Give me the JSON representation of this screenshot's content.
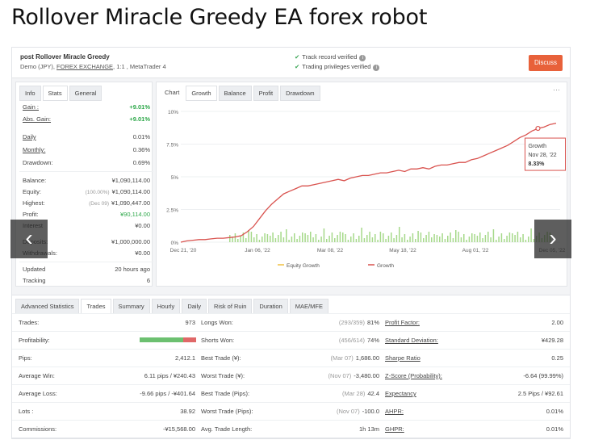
{
  "page_title": "Rollover Miracle Greedy EA forex robot",
  "header": {
    "account_name": "post Rollover Miracle Greedy",
    "account_type": "Demo (JPY),",
    "broker": "FOREX EXCHANGE",
    "leverage_platform": ", 1:1 , MetaTrader 4",
    "verified_1": "Track record verified",
    "verified_2": "Trading privileges verified",
    "discuss_label": "Discuss"
  },
  "left_panel": {
    "tabs": [
      "Info",
      "Stats",
      "General"
    ],
    "rows": [
      {
        "label": "Gain :",
        "value": "+9.01%"
      },
      {
        "label": "Abs. Gain:",
        "value": "+9.01%"
      },
      {
        "label": "Daily",
        "value": "0.01%"
      },
      {
        "label": "Monthly:",
        "value": "0.36%"
      },
      {
        "label": "Drawdown:",
        "value": "0.69%"
      },
      {
        "label": "Balance:",
        "value": "¥1,090,114.00"
      },
      {
        "label": "Equity:",
        "note": "(100.00%)",
        "value": "¥1,090,114.00"
      },
      {
        "label": "Highest:",
        "note": "(Dec 09)",
        "value": "¥1,090,447.00"
      },
      {
        "label": "Profit:",
        "value": "¥90,114.00"
      },
      {
        "label": "Interest",
        "value": "¥0.00"
      },
      {
        "label": "Deposits:",
        "value": "¥1,000,000.00"
      },
      {
        "label": "Withdrawals:",
        "value": "¥0.00"
      },
      {
        "label": "Updated",
        "value": "20 hours ago"
      },
      {
        "label": "Tracking",
        "value": "6"
      }
    ]
  },
  "chart_panel": {
    "tabs": [
      "Chart",
      "Growth",
      "Balance",
      "Profit",
      "Drawdown"
    ],
    "menu_dots": "···",
    "tooltip": {
      "title": "Growth",
      "date": "Nov 28, '22",
      "value": "8.33%"
    },
    "legend": [
      "Equity Growth",
      "Growth"
    ]
  },
  "chart_data": {
    "type": "line",
    "y_ticks": [
      "0%",
      "2.5%",
      "5%",
      "7.5%",
      "10%"
    ],
    "ylim": [
      0,
      10
    ],
    "x_ticks": [
      "Dec 21, '20",
      "Jan 06, '22",
      "Mar 08, '22",
      "May 18, '22",
      "Aug 01, '22",
      "Dec 05, '22"
    ],
    "series": [
      {
        "name": "Growth",
        "color": "#d9534f",
        "values": [
          0,
          0.1,
          0.15,
          0.2,
          0.2,
          0.25,
          0.3,
          0.3,
          0.35,
          0.4,
          0.5,
          0.8,
          1.2,
          1.8,
          2.4,
          2.9,
          3.3,
          3.7,
          3.9,
          4.1,
          4.3,
          4.3,
          4.4,
          4.5,
          4.6,
          4.7,
          4.8,
          4.7,
          4.9,
          5.0,
          5.1,
          5.1,
          5.2,
          5.3,
          5.3,
          5.4,
          5.5,
          5.4,
          5.6,
          5.6,
          5.7,
          5.6,
          5.8,
          5.9,
          5.9,
          6.0,
          6.1,
          6.1,
          6.3,
          6.4,
          6.6,
          6.8,
          7.0,
          7.2,
          7.4,
          7.7,
          8.0,
          8.2,
          8.5,
          8.7,
          8.8,
          9.0,
          9.1
        ]
      },
      {
        "name": "Equity Growth",
        "color": "#f0c040",
        "values": []
      }
    ],
    "bars_color": "#a6d98a"
  },
  "advanced": {
    "title": "Advanced Statistics",
    "tabs": [
      "Trades",
      "Summary",
      "Hourly",
      "Daily",
      "Risk of Ruin",
      "Duration",
      "MAE/MFE"
    ],
    "rows": [
      {
        "l1": "Trades:",
        "v1": "973",
        "l2": "Longs Won:",
        "n2": "(293/359)",
        "v2": "81%",
        "l3": "Profit Factor:",
        "v3": "2.00"
      },
      {
        "l1": "Profitability:",
        "v1": "",
        "l2": "Shorts Won:",
        "n2": "(456/614)",
        "v2": "74%",
        "l3": "Standard Deviation:",
        "v3": "¥429.28"
      },
      {
        "l1": "Pips:",
        "v1": "2,412.1",
        "l2": "Best Trade (¥):",
        "n2": "(Mar 07)",
        "v2": "1,686.00",
        "l3": "Sharpe Ratio",
        "v3": "0.25"
      },
      {
        "l1": "Average Win:",
        "v1": "6.11 pips / ¥240.43",
        "l2": "Worst Trade (¥):",
        "n2": "(Nov 07)",
        "v2": "-3,480.00",
        "l3": "Z-Score (Probability):",
        "v3": "-6.64 (99.99%)"
      },
      {
        "l1": "Average Loss:",
        "v1": "-9.66 pips / -¥401.64",
        "l2": "Best Trade (Pips):",
        "n2": "(Mar 28)",
        "v2": "42.4",
        "l3": "Expectancy",
        "v3": "2.5 Pips / ¥92.61"
      },
      {
        "l1": "Lots :",
        "v1": "38.92",
        "l2": "Worst Trade (Pips):",
        "n2": "(Nov 07)",
        "v2": "-100.0",
        "l3": "AHPR:",
        "v3": "0.01%"
      },
      {
        "l1": "Commissions:",
        "v1": "-¥15,568.00",
        "l2": "Avg. Trade Length:",
        "n2": "",
        "v2": "1h 13m",
        "l3": "GHPR:",
        "v3": "0.01%"
      }
    ],
    "profitability_win_fraction": 0.77
  }
}
